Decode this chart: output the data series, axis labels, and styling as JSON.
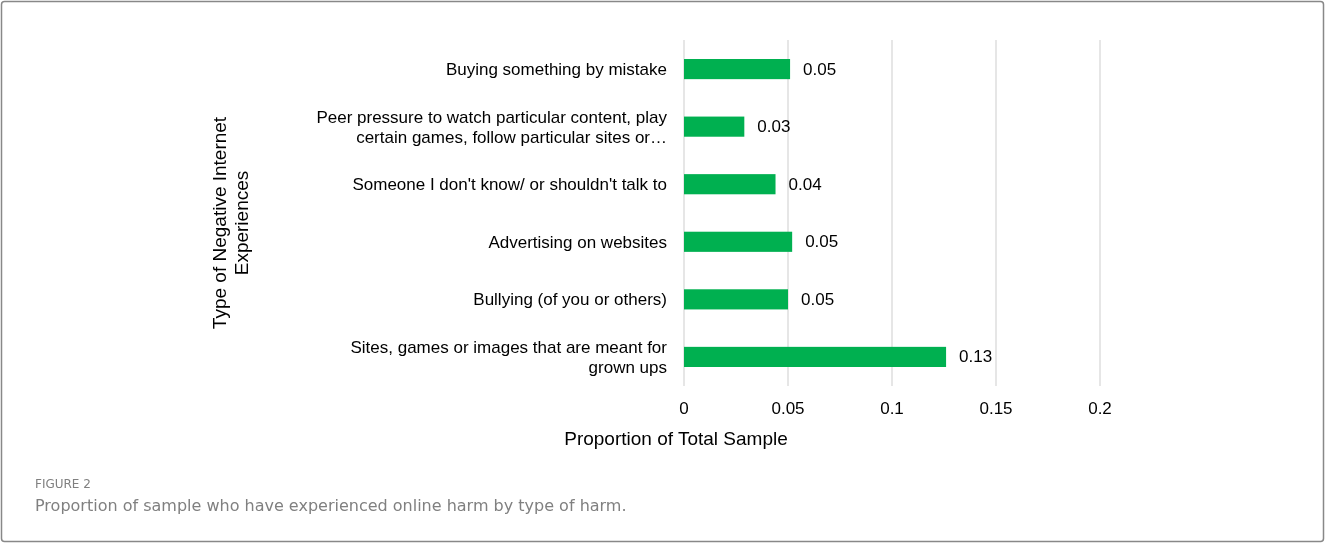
{
  "chart_data": {
    "type": "bar",
    "orientation": "horizontal",
    "xlabel": "Proportion of Total Sample",
    "ylabel": "Type of Negative Internet\nExperiences",
    "categories": [
      "Buying something by mistake",
      "Peer pressure to watch particular content, play\ncertain games, follow particular sites or…",
      "Someone I don't know/ or shouldn't talk to",
      "Advertising on websites",
      "Bullying (of you or others)",
      "Sites, games or images that are meant for\ngrown ups"
    ],
    "values": [
      0.051,
      0.029,
      0.044,
      0.052,
      0.05,
      0.126
    ],
    "value_labels": [
      "0.05",
      "0.03",
      "0.04",
      "0.05",
      "0.05",
      "0.13"
    ],
    "color": "#00b050",
    "xlim": [
      0,
      0.2
    ],
    "xticks": [
      0,
      0.05,
      0.1,
      0.15,
      0.2
    ],
    "grid": "x",
    "annotations": [
      "FIGURE 2",
      "Proportion of sample who have experienced online harm by type of harm."
    ]
  }
}
